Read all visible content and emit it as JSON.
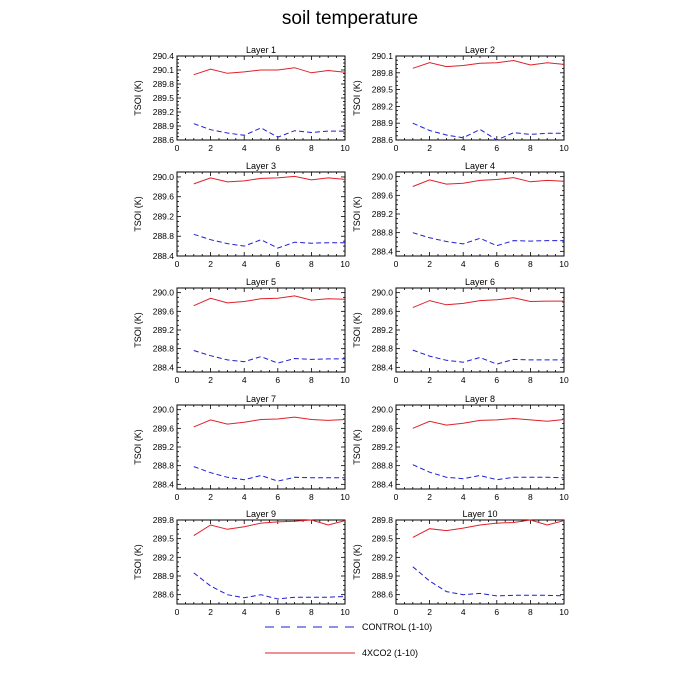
{
  "title": "soil temperature",
  "colors": {
    "control": "#1f1fd6",
    "co2": "#e0202a",
    "axis": "#000000"
  },
  "legend": {
    "control_label": "CONTROL (1-10)",
    "co2_label": "4XCO2 (1-10)"
  },
  "chart_data": [
    {
      "type": "line",
      "title": "Layer 1",
      "ylabel": "TSOI  (K)",
      "xlim": [
        0,
        10
      ],
      "xticks": [
        0,
        2,
        4,
        6,
        8,
        10
      ],
      "ylim": [
        288.6,
        290.4
      ],
      "yticks": [
        288.6,
        288.9,
        289.2,
        289.5,
        289.8,
        290.1,
        290.4
      ],
      "ytick_labels": [
        "288.6",
        "288.9",
        "289.2",
        "289.5",
        "289.8",
        "290.1",
        "290.4"
      ],
      "series": [
        {
          "name": "CONTROL (1-10)",
          "x": [
            1,
            2,
            3,
            4,
            5,
            6,
            7,
            8,
            9,
            10
          ],
          "values": [
            288.95,
            288.82,
            288.75,
            288.7,
            288.86,
            288.66,
            288.8,
            288.76,
            288.79,
            288.79
          ]
        },
        {
          "name": "4XCO2 (1-10)",
          "x": [
            1,
            2,
            3,
            4,
            5,
            6,
            7,
            8,
            9,
            10
          ],
          "values": [
            290.0,
            290.12,
            290.03,
            290.06,
            290.1,
            290.1,
            290.15,
            290.04,
            290.09,
            290.05
          ]
        }
      ]
    },
    {
      "type": "line",
      "title": "Layer 2",
      "ylabel": "TSOI  (K)",
      "xlim": [
        0,
        10
      ],
      "xticks": [
        0,
        2,
        4,
        6,
        8,
        10
      ],
      "ylim": [
        288.6,
        290.1
      ],
      "yticks": [
        288.6,
        288.9,
        289.2,
        289.5,
        289.8,
        290.1
      ],
      "ytick_labels": [
        "288.6",
        "288.9",
        "289.2",
        "289.5",
        "289.8",
        "290.1"
      ],
      "series": [
        {
          "name": "CONTROL (1-10)",
          "x": [
            1,
            2,
            3,
            4,
            5,
            6,
            7,
            8,
            9,
            10
          ],
          "values": [
            288.9,
            288.77,
            288.69,
            288.64,
            288.79,
            288.6,
            288.73,
            288.7,
            288.72,
            288.72
          ]
        },
        {
          "name": "4XCO2 (1-10)",
          "x": [
            1,
            2,
            3,
            4,
            5,
            6,
            7,
            8,
            9,
            10
          ],
          "values": [
            289.88,
            289.98,
            289.91,
            289.93,
            289.97,
            289.98,
            290.02,
            289.94,
            289.98,
            289.95
          ]
        }
      ]
    },
    {
      "type": "line",
      "title": "Layer 3",
      "ylabel": "TSOI  (K)",
      "xlim": [
        0,
        10
      ],
      "xticks": [
        0,
        2,
        4,
        6,
        8,
        10
      ],
      "ylim": [
        288.4,
        290.1
      ],
      "yticks": [
        288.4,
        288.8,
        289.2,
        289.6,
        290.0
      ],
      "ytick_labels": [
        "288.4",
        "288.8",
        "289.2",
        "289.6",
        "290.0"
      ],
      "series": [
        {
          "name": "CONTROL (1-10)",
          "x": [
            1,
            2,
            3,
            4,
            5,
            6,
            7,
            8,
            9,
            10
          ],
          "values": [
            288.84,
            288.73,
            288.65,
            288.6,
            288.73,
            288.56,
            288.68,
            288.66,
            288.67,
            288.67
          ]
        },
        {
          "name": "4XCO2 (1-10)",
          "x": [
            1,
            2,
            3,
            4,
            5,
            6,
            7,
            8,
            9,
            10
          ],
          "values": [
            289.86,
            289.98,
            289.9,
            289.92,
            289.97,
            289.98,
            290.01,
            289.94,
            289.98,
            289.95
          ]
        }
      ]
    },
    {
      "type": "line",
      "title": "Layer 4",
      "ylabel": "TSOI  (K)",
      "xlim": [
        0,
        10
      ],
      "xticks": [
        0,
        2,
        4,
        6,
        8,
        10
      ],
      "ylim": [
        288.3,
        290.1
      ],
      "yticks": [
        288.4,
        288.8,
        289.2,
        289.6,
        290.0
      ],
      "ytick_labels": [
        "288.4",
        "288.8",
        "289.2",
        "289.6",
        "290.0"
      ],
      "series": [
        {
          "name": "CONTROL (1-10)",
          "x": [
            1,
            2,
            3,
            4,
            5,
            6,
            7,
            8,
            9,
            10
          ],
          "values": [
            288.8,
            288.69,
            288.61,
            288.56,
            288.68,
            288.52,
            288.63,
            288.62,
            288.63,
            288.63
          ]
        },
        {
          "name": "4XCO2 (1-10)",
          "x": [
            1,
            2,
            3,
            4,
            5,
            6,
            7,
            8,
            9,
            10
          ],
          "values": [
            289.79,
            289.93,
            289.84,
            289.86,
            289.92,
            289.94,
            289.98,
            289.89,
            289.92,
            289.9
          ]
        }
      ]
    },
    {
      "type": "line",
      "title": "Layer 5",
      "ylabel": "TSOI  (K)",
      "xlim": [
        0,
        10
      ],
      "xticks": [
        0,
        2,
        4,
        6,
        8,
        10
      ],
      "ylim": [
        288.3,
        290.1
      ],
      "yticks": [
        288.4,
        288.8,
        289.2,
        289.6,
        290.0
      ],
      "ytick_labels": [
        "288.4",
        "288.8",
        "289.2",
        "289.6",
        "290.0"
      ],
      "series": [
        {
          "name": "CONTROL (1-10)",
          "x": [
            1,
            2,
            3,
            4,
            5,
            6,
            7,
            8,
            9,
            10
          ],
          "values": [
            288.76,
            288.65,
            288.56,
            288.52,
            288.63,
            288.49,
            288.59,
            288.57,
            288.58,
            288.58
          ]
        },
        {
          "name": "4XCO2 (1-10)",
          "x": [
            1,
            2,
            3,
            4,
            5,
            6,
            7,
            8,
            9,
            10
          ],
          "values": [
            289.72,
            289.88,
            289.78,
            289.81,
            289.87,
            289.88,
            289.93,
            289.84,
            289.87,
            289.86
          ]
        }
      ]
    },
    {
      "type": "line",
      "title": "Layer 6",
      "ylabel": "TSOI  (K)",
      "xlim": [
        0,
        10
      ],
      "xticks": [
        0,
        2,
        4,
        6,
        8,
        10
      ],
      "ylim": [
        288.3,
        290.1
      ],
      "yticks": [
        288.4,
        288.8,
        289.2,
        289.6,
        290.0
      ],
      "ytick_labels": [
        "288.4",
        "288.8",
        "289.2",
        "289.6",
        "290.0"
      ],
      "series": [
        {
          "name": "CONTROL (1-10)",
          "x": [
            1,
            2,
            3,
            4,
            5,
            6,
            7,
            8,
            9,
            10
          ],
          "values": [
            288.77,
            288.64,
            288.55,
            288.51,
            288.61,
            288.47,
            288.57,
            288.56,
            288.56,
            288.56
          ]
        },
        {
          "name": "4XCO2 (1-10)",
          "x": [
            1,
            2,
            3,
            4,
            5,
            6,
            7,
            8,
            9,
            10
          ],
          "values": [
            289.68,
            289.83,
            289.74,
            289.77,
            289.83,
            289.85,
            289.89,
            289.81,
            289.82,
            289.82
          ]
        }
      ]
    },
    {
      "type": "line",
      "title": "Layer 7",
      "ylabel": "TSOI  (K)",
      "xlim": [
        0,
        10
      ],
      "xticks": [
        0,
        2,
        4,
        6,
        8,
        10
      ],
      "ylim": [
        288.3,
        290.1
      ],
      "yticks": [
        288.4,
        288.8,
        289.2,
        289.6,
        290.0
      ],
      "ytick_labels": [
        "288.4",
        "288.8",
        "289.2",
        "289.6",
        "290.0"
      ],
      "series": [
        {
          "name": "CONTROL (1-10)",
          "x": [
            1,
            2,
            3,
            4,
            5,
            6,
            7,
            8,
            9,
            10
          ],
          "values": [
            288.78,
            288.65,
            288.55,
            288.5,
            288.59,
            288.47,
            288.55,
            288.54,
            288.54,
            288.54
          ]
        },
        {
          "name": "4XCO2 (1-10)",
          "x": [
            1,
            2,
            3,
            4,
            5,
            6,
            7,
            8,
            9,
            10
          ],
          "values": [
            289.63,
            289.78,
            289.69,
            289.73,
            289.79,
            289.8,
            289.84,
            289.79,
            289.77,
            289.79
          ]
        }
      ]
    },
    {
      "type": "line",
      "title": "Layer 8",
      "ylabel": "TSOI  (K)",
      "xlim": [
        0,
        10
      ],
      "xticks": [
        0,
        2,
        4,
        6,
        8,
        10
      ],
      "ylim": [
        288.3,
        290.1
      ],
      "yticks": [
        288.4,
        288.8,
        289.2,
        289.6,
        290.0
      ],
      "ytick_labels": [
        "288.4",
        "288.8",
        "289.2",
        "289.6",
        "290.0"
      ],
      "series": [
        {
          "name": "CONTROL (1-10)",
          "x": [
            1,
            2,
            3,
            4,
            5,
            6,
            7,
            8,
            9,
            10
          ],
          "values": [
            288.82,
            288.66,
            288.55,
            288.52,
            288.59,
            288.5,
            288.55,
            288.55,
            288.55,
            288.54
          ]
        },
        {
          "name": "4XCO2 (1-10)",
          "x": [
            1,
            2,
            3,
            4,
            5,
            6,
            7,
            8,
            9,
            10
          ],
          "values": [
            289.6,
            289.75,
            289.67,
            289.71,
            289.77,
            289.78,
            289.81,
            289.78,
            289.75,
            289.79
          ]
        }
      ]
    },
    {
      "type": "line",
      "title": "Layer 9",
      "ylabel": "TSOI  (K)",
      "xlim": [
        0,
        10
      ],
      "xticks": [
        0,
        2,
        4,
        6,
        8,
        10
      ],
      "ylim": [
        288.45,
        289.8
      ],
      "yticks": [
        288.6,
        288.9,
        289.2,
        289.5,
        289.8
      ],
      "ytick_labels": [
        "288.6",
        "288.9",
        "289.2",
        "289.5",
        "289.8"
      ],
      "series": [
        {
          "name": "CONTROL (1-10)",
          "x": [
            1,
            2,
            3,
            4,
            5,
            6,
            7,
            8,
            9,
            10
          ],
          "values": [
            288.95,
            288.74,
            288.6,
            288.55,
            288.6,
            288.53,
            288.56,
            288.56,
            288.56,
            288.57
          ]
        },
        {
          "name": "4XCO2 (1-10)",
          "x": [
            1,
            2,
            3,
            4,
            5,
            6,
            7,
            8,
            9,
            10
          ],
          "values": [
            289.55,
            289.72,
            289.65,
            289.69,
            289.75,
            289.77,
            289.78,
            289.8,
            289.72,
            289.79
          ]
        }
      ]
    },
    {
      "type": "line",
      "title": "Layer 10",
      "ylabel": "TSOI  (K)",
      "xlim": [
        0,
        10
      ],
      "xticks": [
        0,
        2,
        4,
        6,
        8,
        10
      ],
      "ylim": [
        288.45,
        289.8
      ],
      "yticks": [
        288.6,
        288.9,
        289.2,
        289.5,
        289.8
      ],
      "ytick_labels": [
        "288.6",
        "288.9",
        "289.2",
        "289.5",
        "289.8"
      ],
      "series": [
        {
          "name": "CONTROL (1-10)",
          "x": [
            1,
            2,
            3,
            4,
            5,
            6,
            7,
            8,
            9,
            10
          ],
          "values": [
            289.05,
            288.82,
            288.65,
            288.6,
            288.62,
            288.58,
            288.59,
            288.59,
            288.59,
            288.58
          ]
        },
        {
          "name": "4XCO2 (1-10)",
          "x": [
            1,
            2,
            3,
            4,
            5,
            6,
            7,
            8,
            9,
            10
          ],
          "values": [
            289.52,
            289.66,
            289.63,
            289.67,
            289.72,
            289.75,
            289.76,
            289.8,
            289.72,
            289.79
          ]
        }
      ]
    }
  ]
}
